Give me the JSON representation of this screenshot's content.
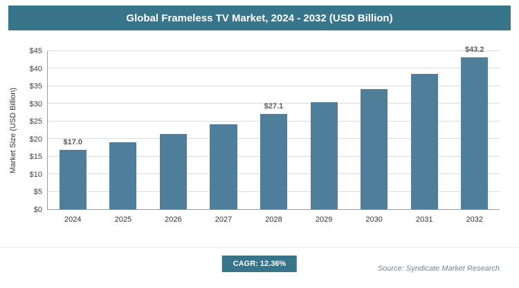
{
  "header": {
    "title": "Global Frameless TV Market, 2024 - 2032 (USD Billion)"
  },
  "chart_data": {
    "type": "bar",
    "title": "Global Frameless TV Market, 2024 - 2032 (USD Billion)",
    "categories": [
      "2024",
      "2025",
      "2026",
      "2027",
      "2028",
      "2029",
      "2030",
      "2031",
      "2032"
    ],
    "values": [
      17.0,
      19.1,
      21.4,
      24.1,
      27.1,
      30.5,
      34.2,
      38.5,
      43.2
    ],
    "data_labels": {
      "2024": "$17.0",
      "2028": "$27.1",
      "2032": "$43.2"
    },
    "xlabel": "",
    "ylabel": "Market Size (USD Billion)",
    "ylim": [
      0,
      45
    ],
    "ytick_step": 5,
    "ytick_labels": [
      "$0",
      "$5",
      "$10",
      "$15",
      "$20",
      "$25",
      "$30",
      "$35",
      "$40",
      "$45"
    ],
    "grid": true,
    "legend": false
  },
  "footer": {
    "cagr_label": "CAGR: 12.36%",
    "source": "Source: Syndicate Market Research"
  },
  "colors": {
    "header_bg": "#36758a",
    "bar": "#4e7e99",
    "badge_bg": "#36758a",
    "gridline": "#dcdcdc",
    "axis_line": "#9a9a9a",
    "data_label": "#595959",
    "source_text": "#6f8694"
  }
}
